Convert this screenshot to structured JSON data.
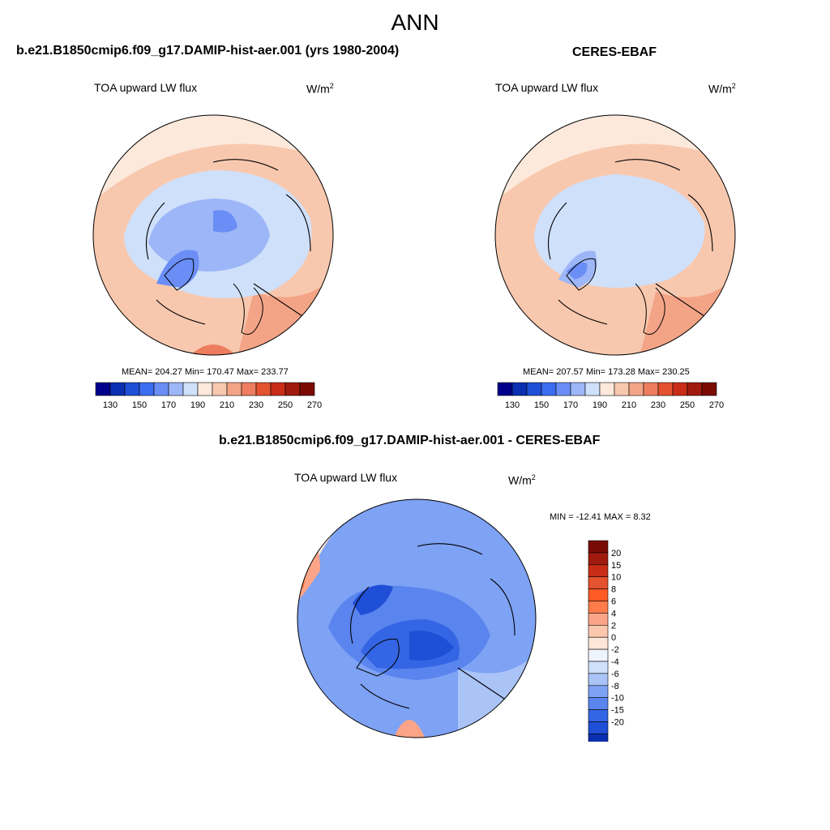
{
  "suptitle": "ANN",
  "panels": [
    {
      "title": "b.e21.B1850cmip6.f09_g17.DAMIP-hist-aer.001 (yrs 1980-2004)",
      "variable": "TOA upward LW flux",
      "units_base": "W/m",
      "units_exp": "2",
      "stats": "MEAN= 204.27  Min= 170.47  Max= 233.77",
      "colorbar_ticks": [
        "130",
        "150",
        "170",
        "190",
        "210",
        "230",
        "250",
        "270"
      ]
    },
    {
      "title": "CERES-EBAF",
      "variable": "TOA upward LW flux",
      "units_base": "W/m",
      "units_exp": "2",
      "stats": "MEAN= 207.57  Min= 173.28  Max= 230.25",
      "colorbar_ticks": [
        "130",
        "150",
        "170",
        "190",
        "210",
        "230",
        "250",
        "270"
      ]
    },
    {
      "title": "b.e21.B1850cmip6.f09_g17.DAMIP-hist-aer.001 - CERES-EBAF",
      "variable": "TOA upward LW flux",
      "units_base": "W/m",
      "units_exp": "2",
      "stats": "MIN = -12.41 MAX =   8.32",
      "colorbar_ticks": [
        "20",
        "15",
        "10",
        "8",
        "6",
        "4",
        "2",
        "0",
        "-2",
        "-4",
        "-6",
        "-8",
        "-10",
        "-15",
        "-20"
      ]
    }
  ],
  "colors": {
    "abs_scale": [
      "#00008b",
      "#0a2fb0",
      "#1f4fd6",
      "#3a6cf0",
      "#6a8ef5",
      "#9db6f7",
      "#cfe0fb",
      "#fde9dc",
      "#f8c8ae",
      "#f3a486",
      "#ee7d5f",
      "#e4522f",
      "#c92d17",
      "#a11a0e",
      "#7a0b04"
    ],
    "diff_scale": [
      "#7a0b04",
      "#a11a0e",
      "#c92d17",
      "#e4522f",
      "#ff5a26",
      "#ff7c4a",
      "#fca487",
      "#fcc8ad",
      "#fde6d8",
      "#eef4fc",
      "#cfe0fb",
      "#aac4f8",
      "#7ea2f4",
      "#5a84ee",
      "#3465e4",
      "#1f4fd6",
      "#0a2fb0",
      "#00008b"
    ]
  }
}
